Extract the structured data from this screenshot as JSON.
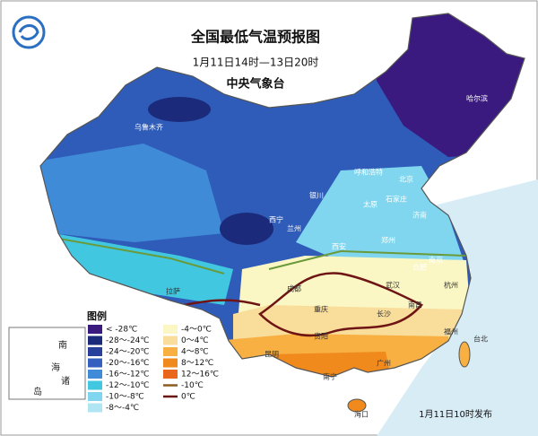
{
  "header": {
    "title": "全国最低气温预报图",
    "subtitle": "1月11日14时—13日20时",
    "issuer": "中央气象台"
  },
  "legend": {
    "title": "图例",
    "items": [
      {
        "label": "< -28℃",
        "color": "#3b1a80",
        "kind": "fill"
      },
      {
        "label": "-28～-24℃",
        "color": "#1b2a7a",
        "kind": "fill"
      },
      {
        "label": "-24～-20℃",
        "color": "#26409c",
        "kind": "fill"
      },
      {
        "label": "-20～-16℃",
        "color": "#3560c0",
        "kind": "fill"
      },
      {
        "label": "-16～-12℃",
        "color": "#3f8bd8",
        "kind": "fill"
      },
      {
        "label": "-12～-10℃",
        "color": "#41c8e0",
        "kind": "fill"
      },
      {
        "label": "-10～-8℃",
        "color": "#7fd6ee",
        "kind": "fill"
      },
      {
        "label": "-8～-4℃",
        "color": "#b0e6f3",
        "kind": "fill"
      },
      {
        "label": "-4～0℃",
        "color": "#fbf7c4",
        "kind": "fill"
      },
      {
        "label": "0～4℃",
        "color": "#f9dd9a",
        "kind": "fill"
      },
      {
        "label": "4～8℃",
        "color": "#f7b041",
        "kind": "fill"
      },
      {
        "label": "8～12℃",
        "color": "#f08a1c",
        "kind": "fill"
      },
      {
        "label": "12～16℃",
        "color": "#e8671a",
        "kind": "fill"
      },
      {
        "label": "-10℃",
        "color": "#8a5a1e",
        "kind": "line"
      },
      {
        "label": "0℃",
        "color": "#6e1414",
        "kind": "line"
      }
    ]
  },
  "inset": {
    "labels": [
      "南",
      "海",
      "诸",
      "岛"
    ]
  },
  "cities": [
    "乌鲁木齐",
    "哈尔滨",
    "呼和浩特",
    "北京",
    "银川",
    "太原",
    "石家庄",
    "济南",
    "西宁",
    "兰州",
    "郑州",
    "西安",
    "合肥",
    "南京",
    "拉萨",
    "成都",
    "重庆",
    "武汉",
    "杭州",
    "长沙",
    "南昌",
    "贵阳",
    "福州",
    "昆明",
    "南宁",
    "广州",
    "台北",
    "海口"
  ],
  "footer": {
    "issued": "1月11日10时发布"
  }
}
